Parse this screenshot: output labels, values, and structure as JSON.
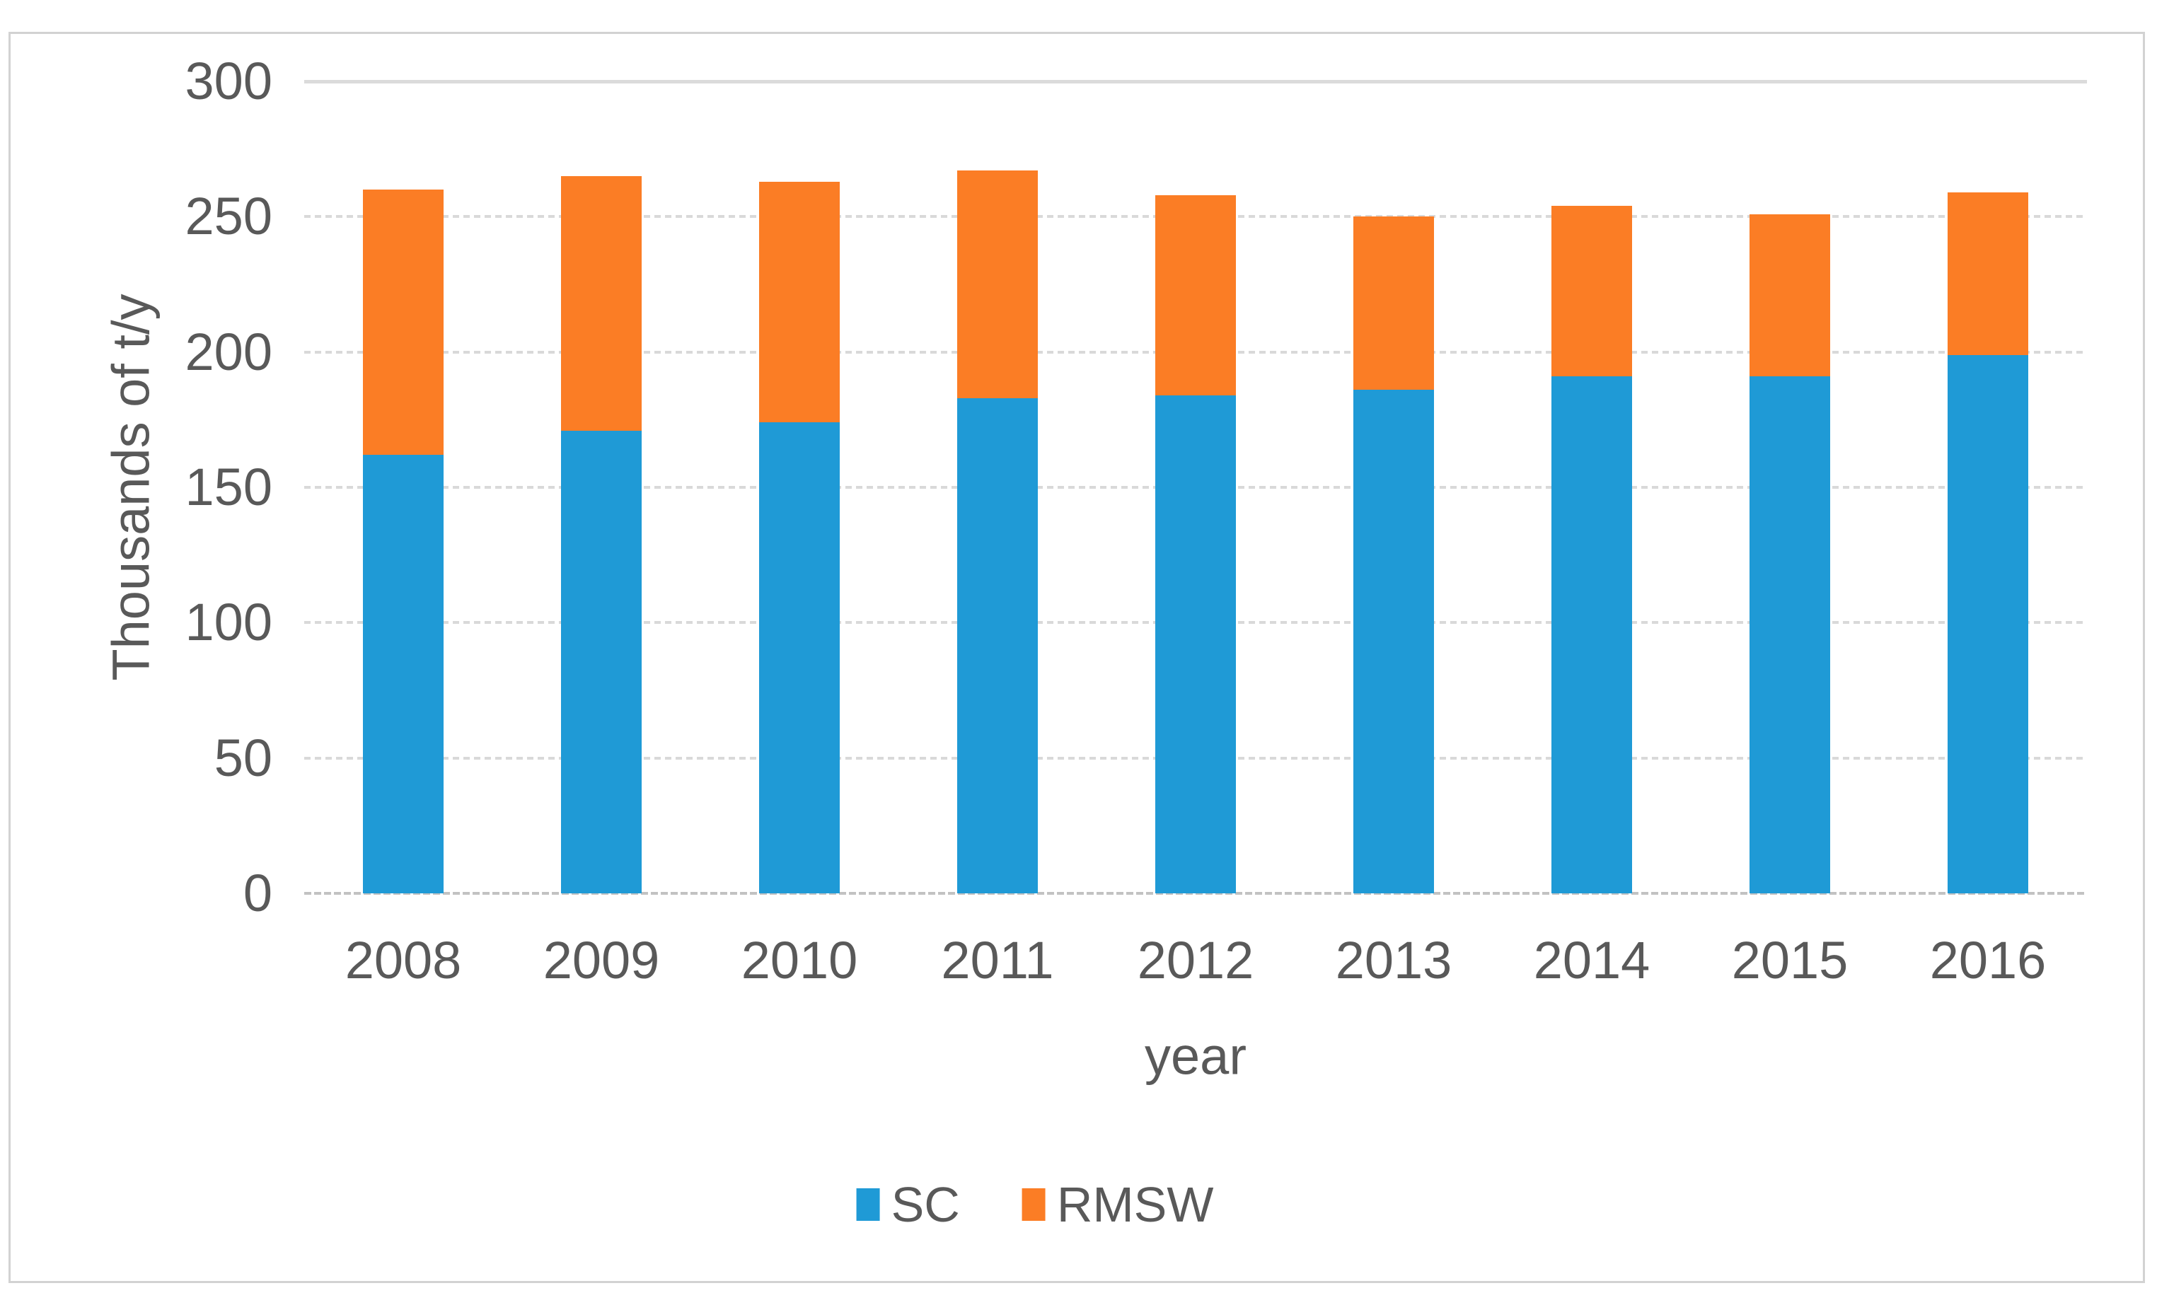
{
  "figure": {
    "y_axis_title": "Thousands of t/y",
    "x_axis_title": "year",
    "colors": {
      "sc_blue": "#1f9ad6",
      "rmsw_orange": "#fb7d25",
      "gridline_gray": "#d9d9d9",
      "axis_line_gray": "#c2c2c2",
      "text_gray": "#595959",
      "border_gray": "#d2d2d2"
    }
  },
  "chart_data": {
    "type": "bar",
    "stacked": true,
    "title": "",
    "xlabel": "year",
    "ylabel": "Thousands of t/y",
    "categories": [
      "2008",
      "2009",
      "2010",
      "2011",
      "2012",
      "2013",
      "2014",
      "2015",
      "2016"
    ],
    "series": [
      {
        "name": "SC",
        "color": "#1f9ad6",
        "values": [
          162,
          171,
          174,
          183,
          184,
          186,
          191,
          191,
          199
        ]
      },
      {
        "name": "RMSW",
        "color": "#fb7d25",
        "values": [
          98,
          94,
          89,
          84,
          74,
          64,
          63,
          60,
          60
        ]
      }
    ],
    "stacked_totals": [
      260,
      265,
      263,
      267,
      258,
      250,
      254,
      251,
      259
    ],
    "ylim": [
      0,
      300
    ],
    "yticks": [
      300,
      250,
      200,
      150,
      100,
      50,
      0
    ],
    "ytick_step": 50,
    "grid": "horizontal-dashed",
    "legend_position": "bottom-center"
  }
}
